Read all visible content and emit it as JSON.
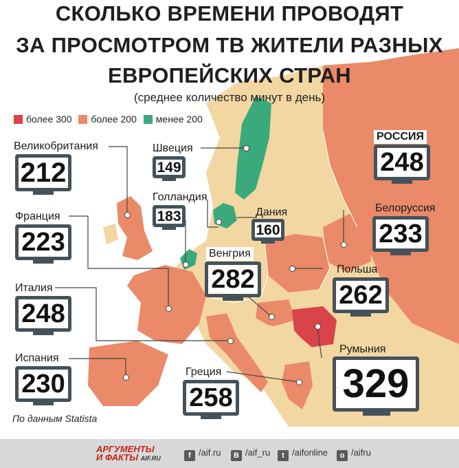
{
  "title": {
    "line1": "СКОЛЬКО ВРЕМЕНИ ПРОВОДЯТ",
    "line2": "ЗА ПРОСМОТРОМ ТВ ЖИТЕЛИ РАЗНЫХ",
    "line3": "ЕВРОПЕЙСКИХ СТРАН",
    "subtitle": "(среднее количество минут в день)"
  },
  "legend": [
    {
      "label": "более 300",
      "color": "#d9434a"
    },
    {
      "label": "более 200",
      "color": "#ea8a68"
    },
    {
      "label": "менее 200",
      "color": "#3aaa7c"
    }
  ],
  "countries": {
    "uk": {
      "name": "Великобритания",
      "value": "212"
    },
    "sweden": {
      "name": "Швеция",
      "value": "149"
    },
    "netherlands": {
      "name": "Голландия",
      "value": "183"
    },
    "denmark": {
      "name": "Дания",
      "value": "160"
    },
    "russia": {
      "name": "РОССИЯ",
      "value": "248"
    },
    "belarus": {
      "name": "Белоруссия",
      "value": "233"
    },
    "france": {
      "name": "Франция",
      "value": "223"
    },
    "hungary": {
      "name": "Венгрия",
      "value": "282"
    },
    "poland": {
      "name": "Польша",
      "value": "262"
    },
    "italy": {
      "name": "Италия",
      "value": "248"
    },
    "romania": {
      "name": "Румыния",
      "value": "329"
    },
    "spain": {
      "name": "Испания",
      "value": "230"
    },
    "greece": {
      "name": "Греция",
      "value": "258"
    }
  },
  "source": "По данным Statista",
  "footer": {
    "logo_line1": "АРГУМЕНТЫ",
    "logo_line2": "И ФАКТЫ",
    "logo_site": "AIF.RU",
    "social": [
      {
        "icon": "facebook-icon",
        "glyph": "f",
        "label": "/aif.ru"
      },
      {
        "icon": "vk-icon",
        "glyph": "В",
        "label": "/aif_ru"
      },
      {
        "icon": "twitter-icon",
        "glyph": "t",
        "label": "/aifonline"
      },
      {
        "icon": "odnoklassniki-icon",
        "glyph": "о",
        "label": "/aifru"
      }
    ]
  },
  "colors": {
    "over300": "#d9434a",
    "over200": "#ea8a68",
    "under200": "#3aaa7c",
    "no_data": "#f2d7a3",
    "sea": "#ffffff",
    "tv_frame": "#46525a"
  }
}
